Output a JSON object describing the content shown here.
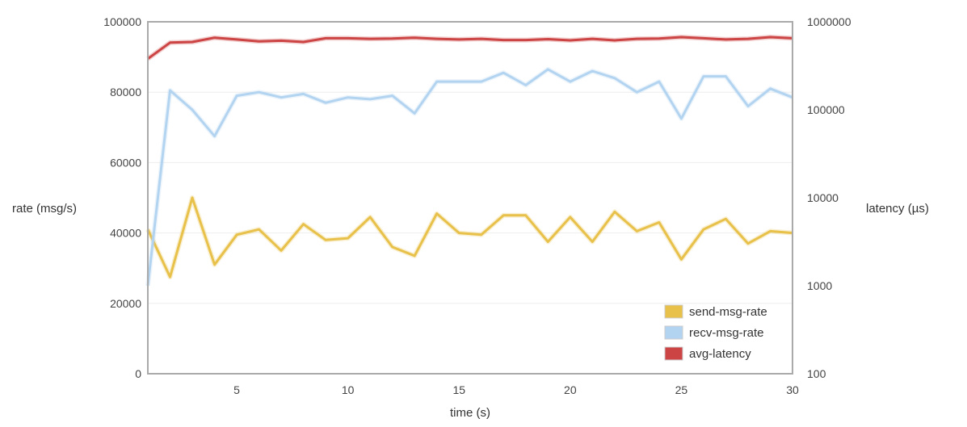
{
  "chart_data": {
    "type": "line",
    "xlabel": "time (s)",
    "ylabel": "rate (msg/s)",
    "y2label": "latency (µs)",
    "xlim": [
      1,
      30
    ],
    "ylim": [
      0,
      100000
    ],
    "y2lim": [
      100,
      1000000
    ],
    "y2scale": "log",
    "x_ticks": [
      5,
      10,
      15,
      20,
      25,
      30
    ],
    "y_ticks": [
      0,
      20000,
      40000,
      60000,
      80000,
      100000
    ],
    "y2_ticks": [
      100,
      1000,
      10000,
      100000,
      1000000
    ],
    "grid": "horizontal",
    "legend_position": "bottom-right",
    "x": [
      1,
      2,
      3,
      4,
      5,
      6,
      7,
      8,
      9,
      10,
      11,
      12,
      13,
      14,
      15,
      16,
      17,
      18,
      19,
      20,
      21,
      22,
      23,
      24,
      25,
      26,
      27,
      28,
      29,
      30
    ],
    "series": [
      {
        "name": "send-msg-rate",
        "axis": "left",
        "color": "#e8c14a",
        "values": [
          41000,
          27500,
          50000,
          31000,
          39500,
          41000,
          35000,
          42500,
          38000,
          38500,
          44500,
          36000,
          33500,
          45500,
          40000,
          39500,
          45000,
          45000,
          37500,
          44500,
          37500,
          46000,
          40500,
          43000,
          32500,
          41000,
          44000,
          37000,
          40500,
          40000
        ]
      },
      {
        "name": "recv-msg-rate",
        "axis": "left",
        "color": "#b3d4f0",
        "values": [
          25000,
          80500,
          75000,
          67500,
          79000,
          80000,
          78500,
          79500,
          77000,
          78500,
          78000,
          79000,
          74000,
          83000,
          83000,
          83000,
          85500,
          82000,
          86500,
          83000,
          86000,
          84000,
          80000,
          83000,
          72500,
          84500,
          84500,
          76000,
          81000,
          78500
        ]
      },
      {
        "name": "avg-latency",
        "axis": "right",
        "color": "#cc4444",
        "values": [
          380000,
          580000,
          590000,
          660000,
          630000,
          600000,
          610000,
          590000,
          650000,
          650000,
          640000,
          645000,
          660000,
          640000,
          630000,
          640000,
          620000,
          620000,
          635000,
          615000,
          640000,
          615000,
          640000,
          645000,
          670000,
          650000,
          630000,
          640000,
          670000,
          650000
        ]
      }
    ]
  }
}
